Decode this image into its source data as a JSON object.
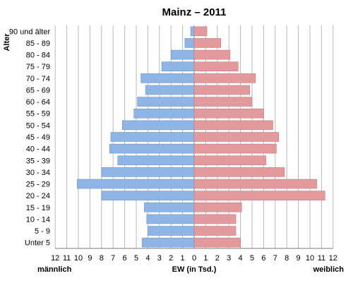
{
  "chart_data": {
    "type": "bar",
    "title": "Mainz – 2011",
    "ylabel": "Alter",
    "xlabel": "EW (in Tsd.)",
    "left_label": "männlich",
    "right_label": "weiblich",
    "grid": true,
    "xlim": [
      -12,
      12
    ],
    "x_ticks": [
      12,
      11,
      10,
      9,
      8,
      7,
      6,
      5,
      4,
      3,
      2,
      1,
      0,
      1,
      2,
      3,
      4,
      5,
      6,
      7,
      8,
      9,
      10,
      11,
      12
    ],
    "categories": [
      "90 und älter",
      "85 - 89",
      "80 - 84",
      "75 - 79",
      "70 - 74",
      "65 - 69",
      "60 - 64",
      "55 - 59",
      "50 - 54",
      "45 - 49",
      "40 - 44",
      "35 - 39",
      "30 - 34",
      "25 - 29",
      "20 - 24",
      "15 - 19",
      "10 - 14",
      "5 - 9",
      "Unter 5"
    ],
    "series": [
      {
        "name": "männlich",
        "color": "#8fb4e6",
        "values": [
          0.3,
          0.8,
          2.0,
          2.8,
          4.6,
          4.2,
          4.9,
          5.2,
          6.2,
          7.2,
          7.3,
          6.6,
          8.0,
          10.1,
          8.0,
          4.3,
          4.1,
          4.0,
          4.5
        ]
      },
      {
        "name": "weiblich",
        "color": "#e39a9d",
        "values": [
          1.1,
          2.3,
          3.1,
          3.8,
          5.3,
          4.8,
          5.0,
          6.0,
          6.8,
          7.3,
          7.1,
          6.2,
          7.8,
          10.6,
          11.3,
          4.1,
          3.6,
          3.6,
          4.0
        ]
      }
    ]
  }
}
